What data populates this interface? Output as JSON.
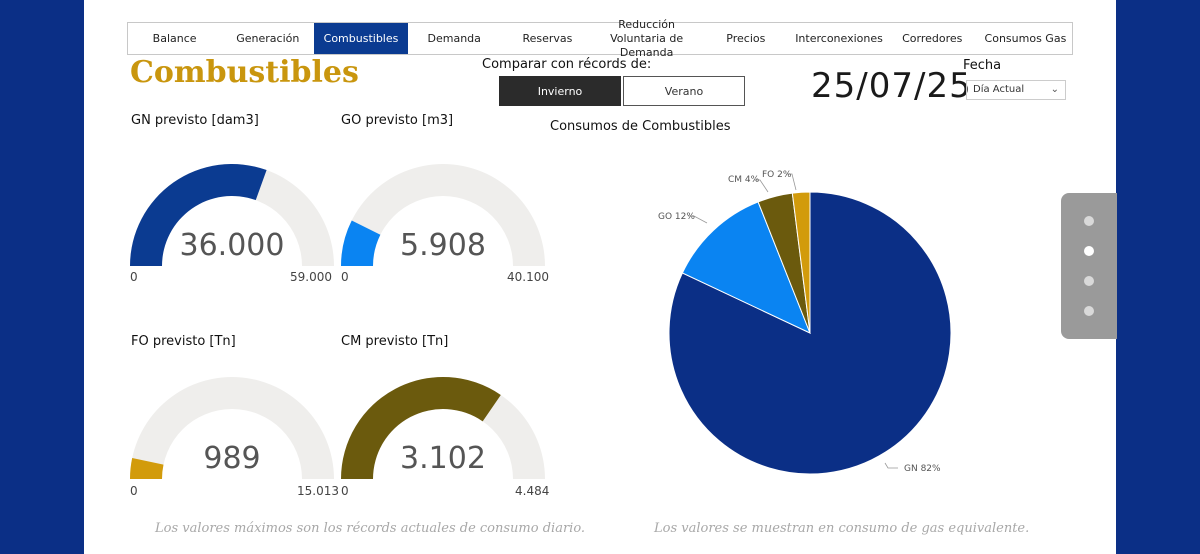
{
  "tabs": [
    "Balance",
    "Generación",
    "Combustibles",
    "Demanda",
    "Reservas",
    "Reducción Voluntaria de Demanda",
    "Precios",
    "Interconexiones",
    "Corredores",
    "Consumos Gas"
  ],
  "active_tab": "Combustibles",
  "page_title": "Combustibles",
  "compare": {
    "label": "Comparar con récords de:",
    "winter": "Invierno",
    "summer": "Verano",
    "selected": "Invierno"
  },
  "date": {
    "value": "25/07/25",
    "label": "Fecha",
    "select_value": "Día Actual"
  },
  "gauges": [
    {
      "id": "gn",
      "label": "GN previsto [dam3]",
      "value_text": "36.000",
      "min_text": "0",
      "max_text": "59.000",
      "value": 36000,
      "max": 59000,
      "color": "#0b3b91"
    },
    {
      "id": "go",
      "label": "GO previsto [m3]",
      "value_text": "5.908",
      "min_text": "0",
      "max_text": "40.100",
      "value": 5908,
      "max": 40100,
      "color": "#0a84f2"
    },
    {
      "id": "fo",
      "label": "FO previsto [Tn]",
      "value_text": "989",
      "min_text": "0",
      "max_text": "15.013",
      "value": 989,
      "max": 15013,
      "color": "#d29b0b"
    },
    {
      "id": "cm",
      "label": "CM previsto [Tn]",
      "value_text": "3.102",
      "min_text": "0",
      "max_text": "4.484",
      "value": 3102,
      "max": 4484,
      "color": "#6b5a0d"
    }
  ],
  "chart_data": {
    "type": "pie",
    "title": "Consumos de Combustibles",
    "slices": [
      {
        "name": "GN",
        "label": "GN 82%",
        "value": 82,
        "color": "#0b2f86"
      },
      {
        "name": "GO",
        "label": "GO 12%",
        "value": 12,
        "color": "#0a84f2"
      },
      {
        "name": "CM",
        "label": "CM 4%",
        "value": 4,
        "color": "#6b5a0d"
      },
      {
        "name": "FO",
        "label": "FO 2%",
        "value": 2,
        "color": "#d29b0b"
      }
    ]
  },
  "notes": {
    "left": "Los valores máximos son los récords actuales de consumo diario.",
    "right": "Los valores se muestran en consumo de gas equivalente."
  },
  "page_nav": {
    "count": 4,
    "active_index": 1
  }
}
